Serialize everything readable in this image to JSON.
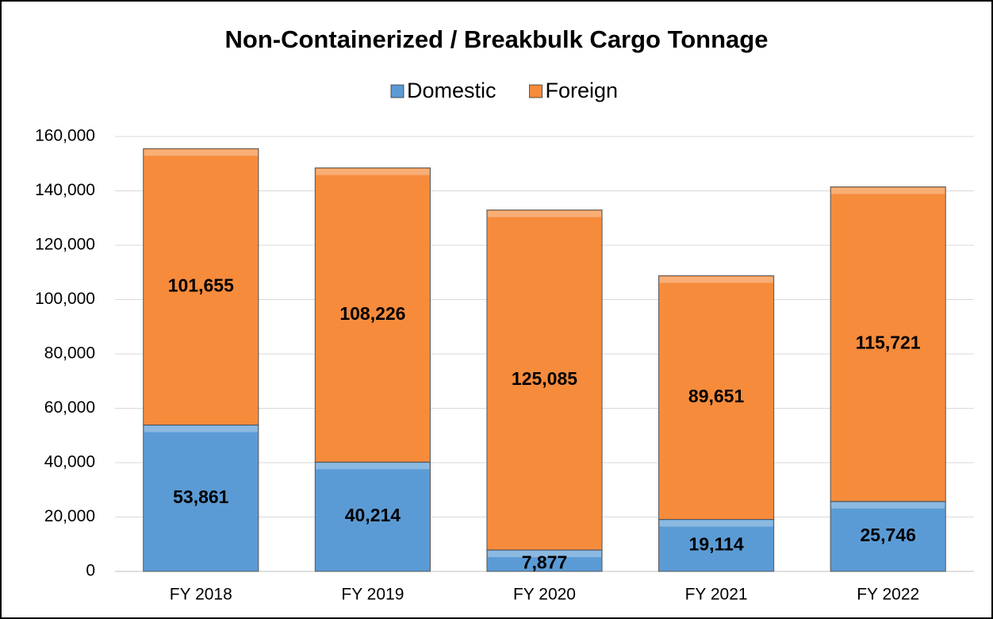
{
  "chart_data": {
    "type": "stacked_bar",
    "title": "Non-Containerized / Breakbulk Cargo Tonnage",
    "categories": [
      "FY 2018",
      "FY 2019",
      "FY 2020",
      "FY 2021",
      "FY 2022"
    ],
    "series": [
      {
        "name": "Domestic",
        "color": "#5b9bd5",
        "values": [
          53861,
          40214,
          7877,
          19114,
          25746
        ],
        "value_labels": [
          "53,861",
          "40,214",
          "7,877",
          "19,114",
          "25,746"
        ]
      },
      {
        "name": "Foreign",
        "color": "#f68b3c",
        "values": [
          101655,
          108226,
          125085,
          89651,
          115721
        ],
        "value_labels": [
          "101,655",
          "108,226",
          "125,085",
          "89,651",
          "115,721"
        ]
      }
    ],
    "ylim": [
      0,
      160000
    ],
    "yticks": [
      0,
      {
        "value": 20000,
        "label": "20,000"
      },
      {
        "value": 40000,
        "label": "40,000"
      },
      {
        "value": 60000,
        "label": "60,000"
      },
      {
        "value": 80000,
        "label": "80,000"
      },
      {
        "value": 100000,
        "label": "100,000"
      },
      {
        "value": 120000,
        "label": "120,000"
      },
      {
        "value": 140000,
        "label": "140,000"
      },
      {
        "value": 160000,
        "label": "160,000"
      }
    ],
    "grid": true,
    "legend": "top"
  }
}
